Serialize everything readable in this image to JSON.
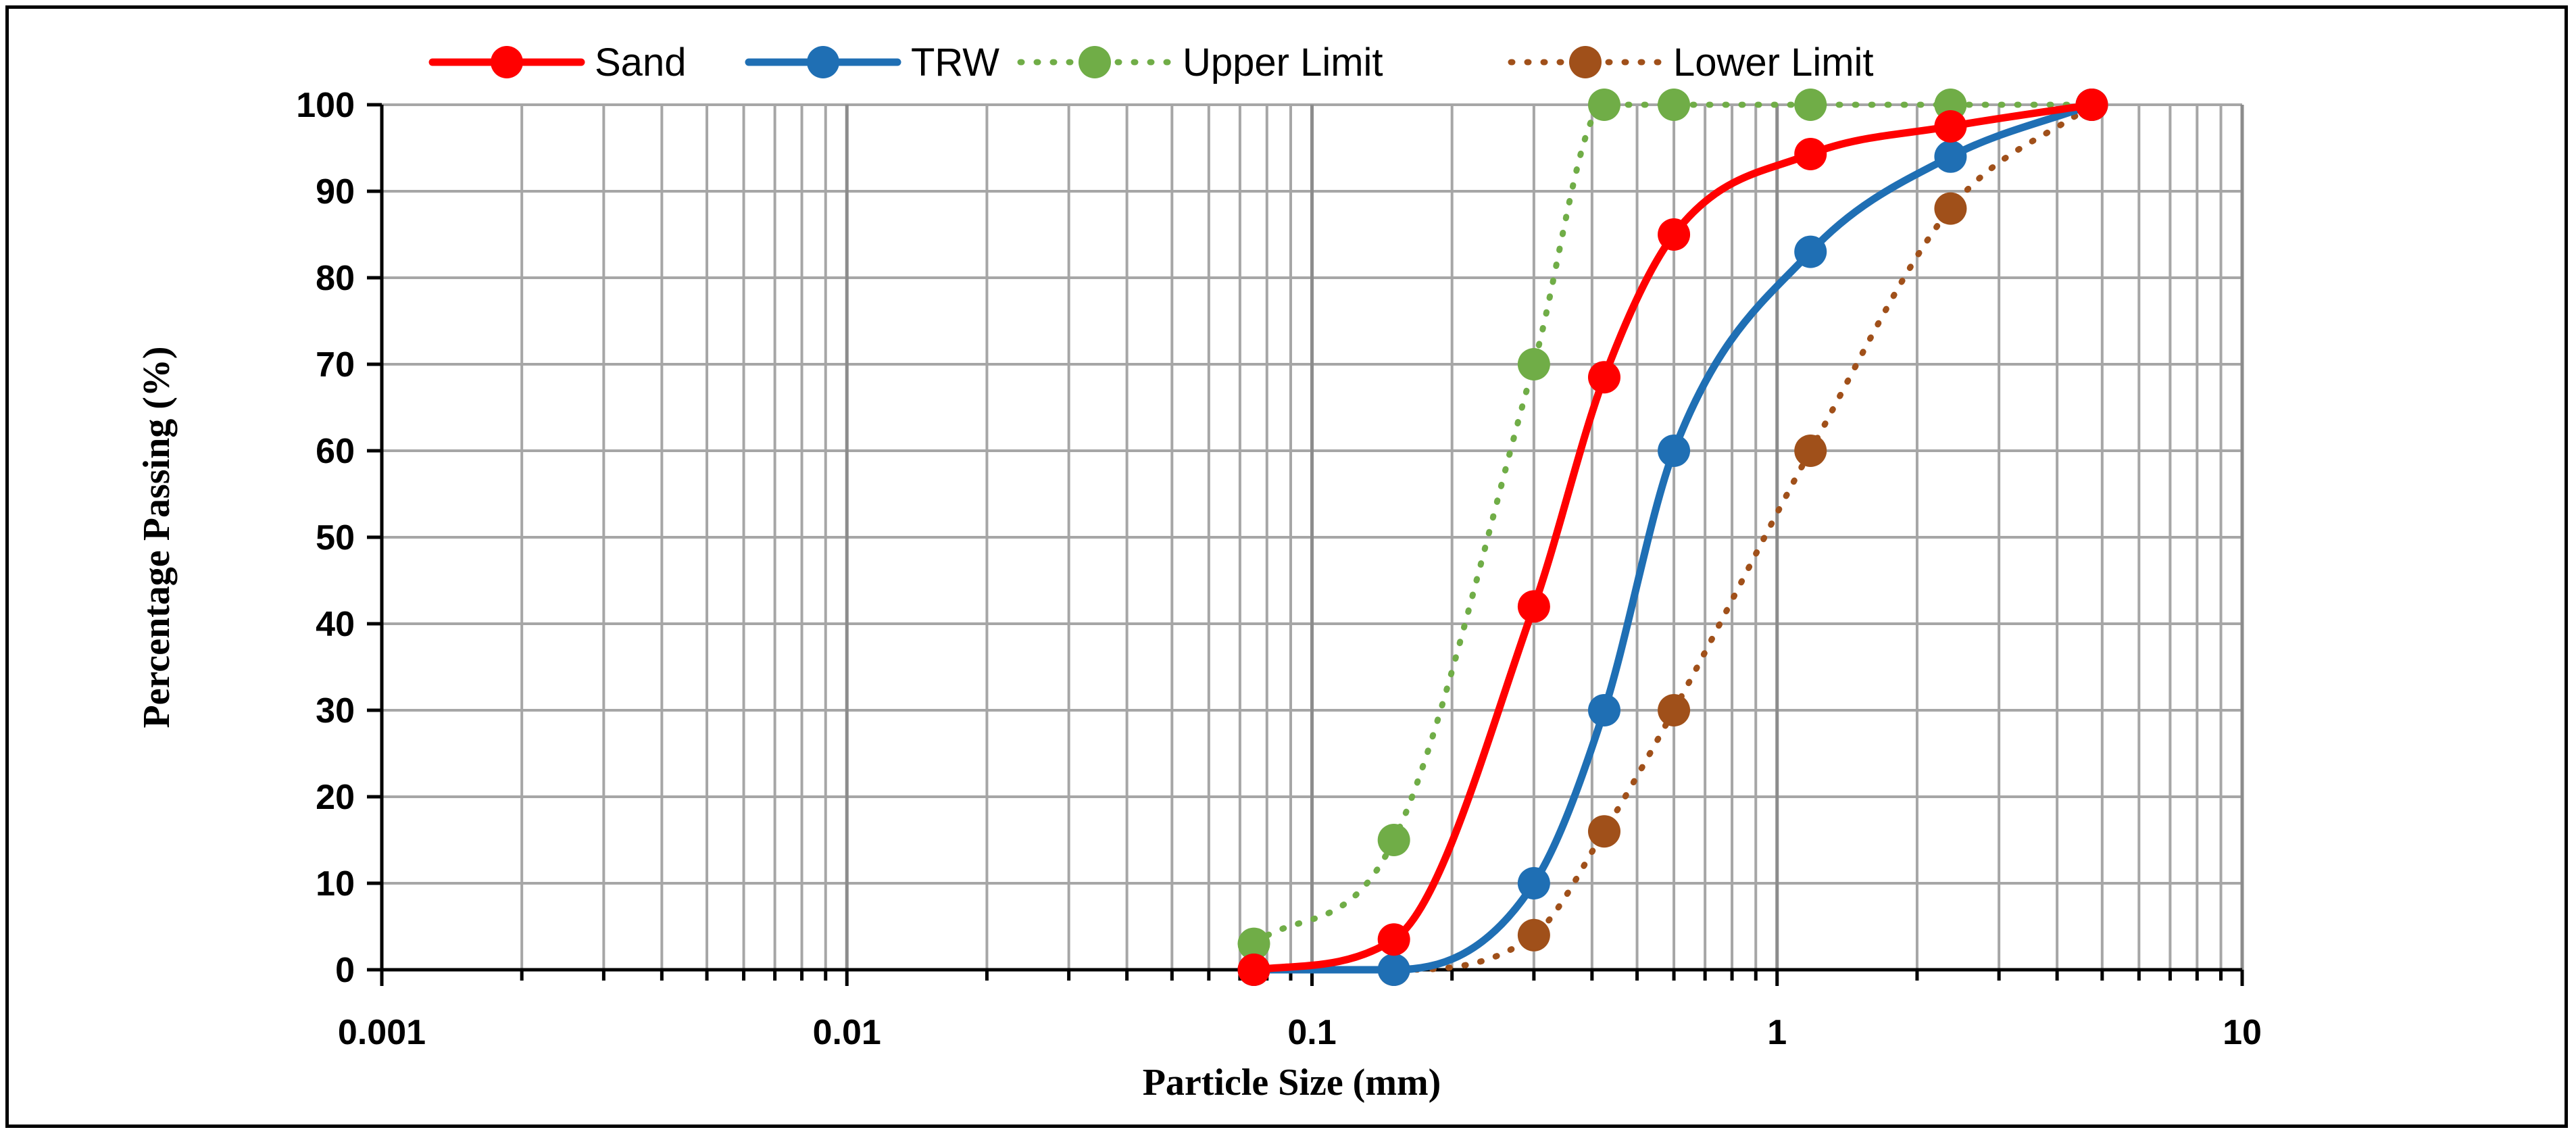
{
  "chart_data": {
    "type": "line",
    "title": "",
    "xlabel": "Particle Size (mm)",
    "ylabel": "Percentage Passing (%)",
    "x_scale": "log",
    "xlim": [
      0.001,
      10
    ],
    "ylim": [
      0,
      100
    ],
    "grid": true,
    "legend_position": "top",
    "x_tick_labels": [
      "0.001",
      "0.01",
      "0.1",
      "1",
      "10"
    ],
    "x_tick_values": [
      0.001,
      0.01,
      0.1,
      1,
      10
    ],
    "y_tick_values": [
      0,
      10,
      20,
      30,
      40,
      50,
      60,
      70,
      80,
      90,
      100
    ],
    "series": [
      {
        "name": "Sand",
        "color": "#FF0000",
        "line_style": "solid",
        "x": [
          0.075,
          0.15,
          0.3,
          0.425,
          0.6,
          1.18,
          2.36,
          4.75
        ],
        "y": [
          0,
          3.5,
          42,
          68.5,
          85,
          94.3,
          97.5,
          100
        ]
      },
      {
        "name": "TRW",
        "color": "#1F6FB4",
        "line_style": "solid",
        "x": [
          0.075,
          0.15,
          0.3,
          0.425,
          0.6,
          1.18,
          2.36,
          4.75
        ],
        "y": [
          0,
          0,
          10,
          30,
          60,
          83,
          94,
          100
        ]
      },
      {
        "name": "Upper Limit",
        "color": "#70AD47",
        "line_style": "dotted",
        "x": [
          0.075,
          0.15,
          0.3,
          0.425,
          0.6,
          1.18,
          2.36,
          4.75
        ],
        "y": [
          3,
          15,
          70,
          100,
          100,
          100,
          100,
          100
        ]
      },
      {
        "name": "Lower Limit",
        "color": "#A0501A",
        "line_style": "dotted",
        "x": [
          0.075,
          0.15,
          0.3,
          0.425,
          0.6,
          1.18,
          2.36,
          4.75
        ],
        "y": [
          0,
          0,
          4,
          16,
          30,
          60,
          88,
          100
        ]
      }
    ]
  }
}
